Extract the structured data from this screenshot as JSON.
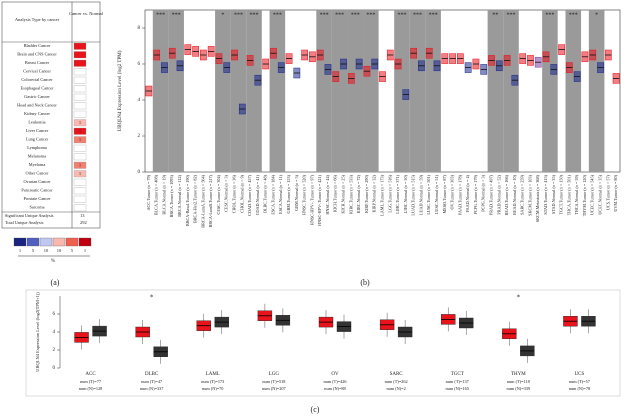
{
  "panel_labels": [
    "(a)",
    "(b)",
    "(c)"
  ],
  "panel_a": {
    "header": [
      "Analysis Type by cancer",
      "Cancer vs. Normal"
    ],
    "rows": [
      {
        "label": "Bladder Cancer",
        "value": null,
        "color": "#e8131b"
      },
      {
        "label": "Brain and CNS Cancer",
        "value": null,
        "color": "#e8131b"
      },
      {
        "label": "Breast Cancer",
        "value": null,
        "color": "#e8131b"
      },
      {
        "label": "Cervical Cancer",
        "value": null,
        "color": "#ffffff"
      },
      {
        "label": "Colorectal Cancer",
        "value": null,
        "color": "#ffffff"
      },
      {
        "label": "Esophageal Cancer",
        "value": null,
        "color": "#ffffff"
      },
      {
        "label": "Gastric Cancer",
        "value": null,
        "color": "#ffffff"
      },
      {
        "label": "Head and Neck Cancer",
        "value": null,
        "color": "#ffffff"
      },
      {
        "label": "Kidney Cancer",
        "value": null,
        "color": "#ffffff"
      },
      {
        "label": "Leukemia",
        "value": "1",
        "color": "#f9b9b0"
      },
      {
        "label": "Liver Cancer",
        "value": "1",
        "color": "#e8131b"
      },
      {
        "label": "Lung Cancer",
        "value": "1",
        "color": "#f08070"
      },
      {
        "label": "Lymphoma",
        "value": null,
        "color": "#ffffff"
      },
      {
        "label": "Melanoma",
        "value": null,
        "color": "#ffffff"
      },
      {
        "label": "Myeloma",
        "value": "1",
        "color": "#f08070"
      },
      {
        "label": "Other Cancer",
        "value": "1",
        "color": "#f9b9b0"
      },
      {
        "label": "Ovarian Cancer",
        "value": null,
        "color": "#ffffff"
      },
      {
        "label": "Pancreatic Cancer",
        "value": null,
        "color": "#ffffff"
      },
      {
        "label": "Prostate Cancer",
        "value": null,
        "color": "#ffffff"
      },
      {
        "label": "Sarcoma",
        "value": null,
        "color": "#ffffff"
      }
    ],
    "footer": [
      {
        "label": "Significant Unique Analysis",
        "value": "13"
      },
      {
        "label": "Total Unique Analysis",
        "value": "292"
      }
    ],
    "legend": {
      "labels": [
        "1",
        "5",
        "10",
        "10",
        "5",
        "1"
      ],
      "colors": [
        "#1a237e",
        "#5060c0",
        "#c0c8f0",
        "#f9b9b0",
        "#f06050",
        "#c00010"
      ],
      "unit": "%"
    }
  },
  "chart_data": [
    {
      "type": "box",
      "y_label": "UBQLN4 Expression Level (log2 TPM)",
      "ylim": [
        0,
        9
      ],
      "yticks": [
        0,
        2,
        4,
        6,
        8
      ],
      "categories": [
        "ACC.Tumor (n = 79)",
        "BLCA.Tumor (n = 408)",
        "BLCA.Normal (n = 19)",
        "BRCA.Tumor (n = 1093)",
        "BRCA.Normal (n = 112)",
        "BRCA-Basal.Tumor (n = 190)",
        "BRCA-Her2.Tumor (n = 82)",
        "BRCA-LumA.Tumor (n = 564)",
        "BRCA-LumB.Tumor (n = 217)",
        "CESC.Tumor (n = 304)",
        "CESC.Normal (n = 3)",
        "CHOL.Tumor (n = 36)",
        "CHOL.Normal (n = 9)",
        "COAD.Tumor (n = 457)",
        "COAD.Normal (n = 41)",
        "DLBC.Tumor (n = 48)",
        "ESCA.Tumor (n = 184)",
        "ESCA.Normal (n = 11)",
        "GBM.Tumor (n = 153)",
        "GBM.Normal (n = 5)",
        "HNSC.Tumor (n = 520)",
        "HNSC-HPV+.Tumor (n = 97)",
        "HNSC-HPV-.Tumor (n = 421)",
        "HNSC.Normal (n = 44)",
        "KICH.Tumor (n = 66)",
        "KICH.Normal (n = 25)",
        "KIRC.Tumor (n = 533)",
        "KIRC.Normal (n = 72)",
        "KIRP.Tumor (n = 290)",
        "KIRP.Normal (n = 32)",
        "LAML.Tumor (n = 173)",
        "LGG.Tumor (n = 516)",
        "LIHC.Tumor (n = 371)",
        "LIHC.Normal (n = 50)",
        "LUAD.Tumor (n = 515)",
        "LUAD.Normal (n = 59)",
        "LUSC.Tumor (n = 501)",
        "LUSC.Normal (n = 51)",
        "MESO.Tumor (n = 87)",
        "OV.Tumor (n = 303)",
        "PAAD.Tumor (n = 178)",
        "PAAD.Normal (n = 4)",
        "PCPG.Tumor (n = 179)",
        "PCPG.Normal (n = 3)",
        "PRAD.Tumor (n = 497)",
        "PRAD.Normal (n = 52)",
        "READ.Tumor (n = 166)",
        "READ.Normal (n = 10)",
        "SARC.Tumor (n = 259)",
        "SKCM.Tumor (n = 103)",
        "SKCM.Metastasis (n = 368)",
        "STAD.Tumor (n = 415)",
        "STAD.Normal (n = 35)",
        "TGCT.Tumor (n = 150)",
        "THCA.Tumor (n = 501)",
        "THCA.Normal (n = 59)",
        "THYM.Tumor (n = 120)",
        "UCEC.Tumor (n = 545)",
        "UCEC.Normal (n = 35)",
        "UCS.Tumor (n = 57)",
        "UVM.Tumor (n = 80)"
      ],
      "values": [
        4.5,
        6.5,
        5.8,
        6.6,
        5.9,
        6.8,
        6.7,
        6.5,
        6.7,
        6.3,
        5.8,
        6.5,
        3.5,
        6.2,
        5.1,
        6.0,
        6.6,
        5.8,
        6.3,
        5.5,
        6.5,
        6.4,
        6.5,
        5.7,
        5.3,
        6.0,
        5.2,
        6.0,
        5.6,
        6.0,
        5.3,
        6.5,
        6.0,
        4.3,
        6.6,
        5.9,
        6.6,
        5.9,
        6.3,
        6.3,
        6.3,
        5.8,
        6.0,
        5.7,
        6.2,
        5.9,
        6.2,
        5.1,
        6.3,
        6.2,
        6.1,
        6.4,
        5.7,
        6.8,
        5.8,
        5.3,
        6.4,
        6.5,
        5.8,
        6.5,
        5.2
      ],
      "colors": [
        "#e8131b",
        "#e8131b",
        "#1c2a8c",
        "#e8131b",
        "#1c2a8c",
        "#e8131b",
        "#e8131b",
        "#e8131b",
        "#e8131b",
        "#e8131b",
        "#1c2a8c",
        "#e8131b",
        "#1c2a8c",
        "#e8131b",
        "#1c2a8c",
        "#e8131b",
        "#e8131b",
        "#1c2a8c",
        "#e8131b",
        "#1c2a8c",
        "#e8131b",
        "#e8131b",
        "#e8131b",
        "#1c2a8c",
        "#e8131b",
        "#1c2a8c",
        "#e8131b",
        "#1c2a8c",
        "#e8131b",
        "#1c2a8c",
        "#e8131b",
        "#e8131b",
        "#e8131b",
        "#1c2a8c",
        "#e8131b",
        "#1c2a8c",
        "#e8131b",
        "#1c2a8c",
        "#e8131b",
        "#e8131b",
        "#e8131b",
        "#1c2a8c",
        "#e8131b",
        "#1c2a8c",
        "#e8131b",
        "#1c2a8c",
        "#e8131b",
        "#1c2a8c",
        "#e8131b",
        "#e8131b",
        "#7b3fa0",
        "#e8131b",
        "#1c2a8c",
        "#e8131b",
        "#e8131b",
        "#1c2a8c",
        "#e8131b",
        "#e8131b",
        "#1c2a8c",
        "#e8131b",
        "#e8131b"
      ],
      "stars": [
        null,
        null,
        "***",
        null,
        "***",
        null,
        null,
        null,
        null,
        null,
        "*",
        null,
        "***",
        null,
        "***",
        null,
        null,
        "***",
        null,
        null,
        null,
        null,
        null,
        "***",
        null,
        "***",
        null,
        "***",
        null,
        "***",
        null,
        null,
        null,
        "***",
        null,
        "***",
        null,
        "***",
        null,
        null,
        null,
        null,
        null,
        null,
        null,
        "**",
        null,
        "***",
        null,
        null,
        null,
        null,
        "***",
        null,
        null,
        "***",
        null,
        null,
        "*",
        null,
        null
      ]
    },
    {
      "type": "box",
      "y_label": "UBQLN4 Expression Level (log2(TPM+1))",
      "ylim": [
        0,
        8
      ],
      "yticks": [
        0,
        2,
        4,
        6
      ],
      "categories": [
        "ACC",
        "DLBC",
        "LAML",
        "LGG",
        "OV",
        "SARC",
        "TGCT",
        "THYM",
        "UCS"
      ],
      "tumor_values": [
        3.4,
        4.0,
        4.7,
        5.8,
        5.1,
        4.8,
        5.4,
        3.8,
        5.2
      ],
      "normal_values": [
        4.1,
        1.8,
        5.1,
        5.3,
        4.6,
        4.0,
        5.0,
        1.9,
        5.2
      ],
      "tumor_color": "#e8131b",
      "normal_color": "#333333",
      "tumor_n": [
        "num (T)=77",
        "num (T)=47",
        "num (T)=173",
        "num (T)=518",
        "num (T)=426",
        "num (T)=262",
        "num (T)=137",
        "num (T)=118",
        "num (T)=57"
      ],
      "normal_n": [
        "num (N)=128",
        "num (N)=337",
        "num (N)=70",
        "num (N)=207",
        "num (N)=88",
        "num (N)=2",
        "num (N)=165",
        "num (N)=339",
        "num (N)=78"
      ],
      "stars": [
        null,
        "*",
        null,
        null,
        null,
        null,
        null,
        "*",
        null
      ]
    }
  ]
}
